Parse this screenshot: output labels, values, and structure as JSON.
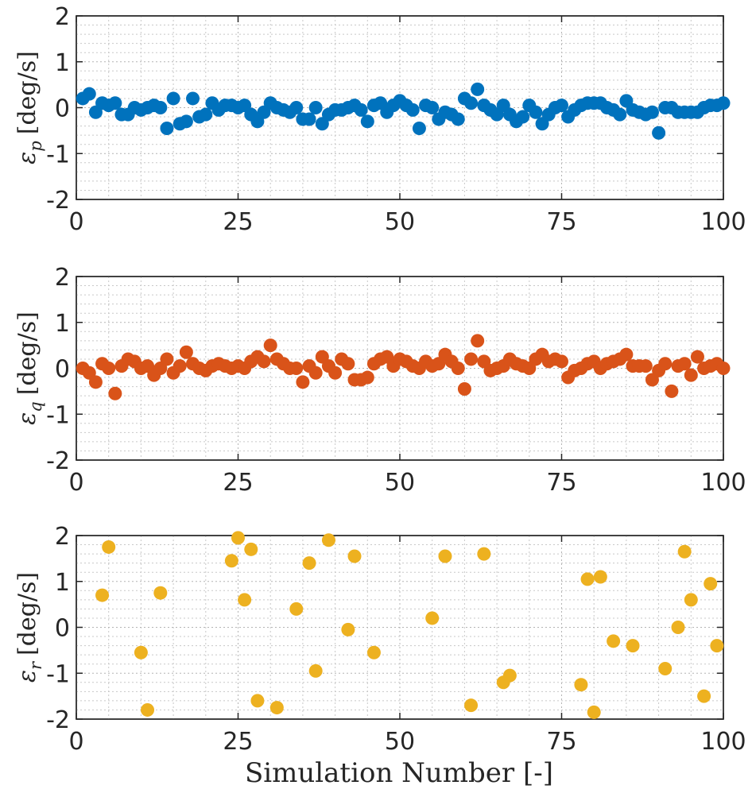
{
  "colors": {
    "series_p": "#0072BD",
    "series_q": "#D95319",
    "series_r": "#EDB120"
  },
  "xlabel": "Simulation Number [-]",
  "chart_data": [
    {
      "type": "scatter",
      "ylabel_symbol": "ε",
      "ylabel_subscript": "p",
      "ylabel_unit": "[deg/s]",
      "xlim": [
        0,
        100
      ],
      "ylim": [
        -2,
        2
      ],
      "xticks": [
        0,
        25,
        50,
        75,
        100
      ],
      "yticks": [
        2,
        1,
        0,
        -1,
        -2
      ],
      "grid": true,
      "x": [
        1,
        2,
        3,
        4,
        5,
        6,
        7,
        8,
        9,
        10,
        11,
        12,
        13,
        14,
        15,
        16,
        17,
        18,
        19,
        20,
        21,
        22,
        23,
        24,
        25,
        26,
        27,
        28,
        29,
        30,
        31,
        32,
        33,
        34,
        35,
        36,
        37,
        38,
        39,
        40,
        41,
        42,
        43,
        44,
        45,
        46,
        47,
        48,
        49,
        50,
        51,
        52,
        53,
        54,
        55,
        56,
        57,
        58,
        59,
        60,
        61,
        62,
        63,
        64,
        65,
        66,
        67,
        68,
        69,
        70,
        71,
        72,
        73,
        74,
        75,
        76,
        77,
        78,
        79,
        80,
        81,
        82,
        83,
        84,
        85,
        86,
        87,
        88,
        89,
        90,
        91,
        92,
        93,
        94,
        95,
        96,
        97,
        98,
        99,
        100
      ],
      "values": [
        0.2,
        0.3,
        -0.1,
        0.1,
        0.05,
        0.1,
        -0.15,
        -0.15,
        0.0,
        -0.05,
        0.0,
        0.05,
        0.0,
        -0.45,
        0.2,
        -0.35,
        -0.3,
        0.2,
        -0.2,
        -0.15,
        0.1,
        -0.05,
        0.05,
        0.05,
        0.0,
        0.05,
        -0.15,
        -0.3,
        -0.1,
        0.1,
        0.0,
        -0.05,
        -0.1,
        0.0,
        -0.25,
        -0.25,
        0.0,
        -0.35,
        -0.15,
        -0.05,
        -0.05,
        0.0,
        0.05,
        -0.05,
        -0.3,
        0.05,
        0.1,
        -0.1,
        0.05,
        0.15,
        0.05,
        -0.05,
        -0.45,
        0.05,
        0.0,
        -0.25,
        -0.1,
        -0.15,
        -0.25,
        0.2,
        0.1,
        0.4,
        0.05,
        -0.05,
        -0.15,
        0.05,
        -0.15,
        -0.3,
        -0.2,
        0.05,
        -0.1,
        -0.35,
        -0.15,
        0.0,
        0.05,
        -0.2,
        -0.05,
        0.05,
        0.1,
        0.1,
        0.1,
        0.0,
        -0.05,
        -0.15,
        0.15,
        -0.05,
        -0.1,
        -0.15,
        -0.1,
        -0.55,
        0.0,
        0.0,
        -0.1,
        -0.1,
        -0.1,
        -0.1,
        0.0,
        0.05,
        0.05,
        0.1
      ]
    },
    {
      "type": "scatter",
      "ylabel_symbol": "ε",
      "ylabel_subscript": "q",
      "ylabel_unit": "[deg/s]",
      "xlim": [
        0,
        100
      ],
      "ylim": [
        -2,
        2
      ],
      "xticks": [
        0,
        25,
        50,
        75,
        100
      ],
      "yticks": [
        2,
        1,
        0,
        -1,
        -2
      ],
      "grid": true,
      "x": [
        1,
        2,
        3,
        4,
        5,
        6,
        7,
        8,
        9,
        10,
        11,
        12,
        13,
        14,
        15,
        16,
        17,
        18,
        19,
        20,
        21,
        22,
        23,
        24,
        25,
        26,
        27,
        28,
        29,
        30,
        31,
        32,
        33,
        34,
        35,
        36,
        37,
        38,
        39,
        40,
        41,
        42,
        43,
        44,
        45,
        46,
        47,
        48,
        49,
        50,
        51,
        52,
        53,
        54,
        55,
        56,
        57,
        58,
        59,
        60,
        61,
        62,
        63,
        64,
        65,
        66,
        67,
        68,
        69,
        70,
        71,
        72,
        73,
        74,
        75,
        76,
        77,
        78,
        79,
        80,
        81,
        82,
        83,
        84,
        85,
        86,
        87,
        88,
        89,
        90,
        91,
        92,
        93,
        94,
        95,
        96,
        97,
        98,
        99,
        100
      ],
      "values": [
        0.0,
        -0.1,
        -0.3,
        0.1,
        0.0,
        -0.55,
        0.05,
        0.2,
        0.15,
        0.0,
        0.05,
        -0.15,
        0.0,
        0.2,
        -0.1,
        0.05,
        0.35,
        0.1,
        0.0,
        -0.05,
        0.05,
        0.1,
        0.05,
        0.0,
        0.05,
        0.0,
        0.15,
        0.25,
        0.15,
        0.5,
        0.2,
        0.1,
        0.0,
        0.0,
        -0.3,
        0.05,
        -0.1,
        0.25,
        0.05,
        -0.1,
        0.2,
        0.1,
        -0.25,
        -0.25,
        -0.2,
        0.1,
        0.2,
        0.25,
        0.05,
        0.2,
        0.15,
        0.05,
        0.0,
        0.15,
        0.05,
        0.1,
        0.3,
        0.15,
        0.0,
        -0.45,
        0.2,
        0.6,
        0.15,
        -0.05,
        0.0,
        0.05,
        0.2,
        0.1,
        0.05,
        0.0,
        0.2,
        0.3,
        0.15,
        0.2,
        0.15,
        -0.2,
        -0.05,
        0.0,
        0.1,
        0.15,
        0.0,
        0.1,
        0.15,
        0.2,
        0.3,
        0.05,
        0.05,
        0.05,
        -0.25,
        -0.05,
        0.1,
        -0.5,
        0.05,
        0.1,
        -0.15,
        0.25,
        0.0,
        0.05,
        0.1,
        0.0
      ]
    },
    {
      "type": "scatter",
      "ylabel_symbol": "ε",
      "ylabel_subscript": "r",
      "ylabel_unit": "[deg/s]",
      "xlim": [
        0,
        100
      ],
      "ylim": [
        -2,
        2
      ],
      "xticks": [
        0,
        25,
        50,
        75,
        100
      ],
      "yticks": [
        2,
        1,
        0,
        -1,
        -2
      ],
      "grid": true,
      "x": [
        4,
        5,
        10,
        11,
        13,
        24,
        25,
        26,
        27,
        28,
        31,
        34,
        36,
        37,
        39,
        42,
        43,
        46,
        55,
        57,
        61,
        63,
        66,
        67,
        78,
        79,
        80,
        81,
        83,
        86,
        91,
        93,
        94,
        95,
        97,
        98,
        99
      ],
      "values": [
        0.7,
        1.75,
        -0.55,
        -1.8,
        0.75,
        1.45,
        1.95,
        0.6,
        1.7,
        -1.6,
        -1.75,
        0.4,
        1.4,
        -0.95,
        1.9,
        -0.05,
        1.55,
        -0.55,
        0.2,
        1.55,
        -1.7,
        1.6,
        -1.2,
        -1.05,
        -1.25,
        1.05,
        -1.85,
        1.1,
        -0.3,
        -0.4,
        -0.9,
        0.0,
        1.65,
        0.6,
        -1.5,
        0.95,
        -0.4
      ]
    }
  ]
}
